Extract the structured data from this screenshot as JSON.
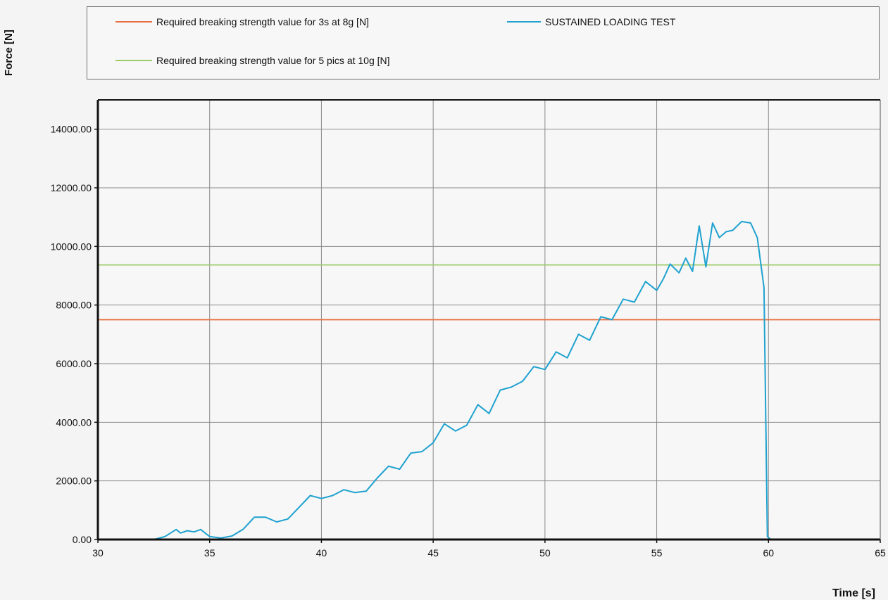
{
  "chart_data": {
    "type": "line",
    "title": "",
    "xlabel": "Time [s]",
    "ylabel": "Force [N]",
    "xlim": [
      30,
      65
    ],
    "ylim": [
      0,
      15000
    ],
    "x_ticks": [
      30,
      35,
      40,
      45,
      50,
      55,
      60,
      65
    ],
    "y_ticks": [
      0,
      2000,
      4000,
      6000,
      8000,
      10000,
      12000,
      14000
    ],
    "y_tick_labels": [
      "0.00",
      "2000.00",
      "4000.00",
      "6000.00",
      "8000.00",
      "10000.00",
      "12000.00",
      "14000.00"
    ],
    "grid": true,
    "legend_position": "top",
    "series": [
      {
        "name": "Required breaking strength value for 3s at 8g [N]",
        "color": "#e8703f",
        "x": [
          30,
          65
        ],
        "y": [
          7500,
          7500
        ]
      },
      {
        "name": "Required breaking strength value for 5 pics at 10g [N]",
        "color": "#9ccc6a",
        "x": [
          30,
          65
        ],
        "y": [
          9370,
          9370
        ]
      },
      {
        "name": "SUSTAINED LOADING TEST",
        "color": "#1fa2cf",
        "x": [
          30,
          32.5,
          33.0,
          33.5,
          33.7,
          34.0,
          34.3,
          34.6,
          35.0,
          35.5,
          36.0,
          36.5,
          37.0,
          37.5,
          38.0,
          38.5,
          39.0,
          39.5,
          40.0,
          40.5,
          41.0,
          41.5,
          42.0,
          42.5,
          43.0,
          43.5,
          44.0,
          44.5,
          45.0,
          45.5,
          46.0,
          46.5,
          47.0,
          47.5,
          48.0,
          48.5,
          49.0,
          49.5,
          50.0,
          50.5,
          51.0,
          51.5,
          52.0,
          52.5,
          53.0,
          53.5,
          54.0,
          54.5,
          55.0,
          55.3,
          55.6,
          56.0,
          56.3,
          56.6,
          56.9,
          57.2,
          57.5,
          57.8,
          58.1,
          58.4,
          58.8,
          59.2,
          59.5,
          59.8,
          59.95,
          60.1,
          62,
          65
        ],
        "y": [
          0,
          0,
          100,
          340,
          220,
          300,
          260,
          340,
          100,
          50,
          120,
          350,
          760,
          760,
          600,
          700,
          1100,
          1500,
          1400,
          1500,
          1700,
          1600,
          1650,
          2100,
          2500,
          2400,
          2950,
          3000,
          3300,
          3950,
          3700,
          3900,
          4600,
          4300,
          5100,
          5200,
          5400,
          5900,
          5800,
          6400,
          6200,
          7000,
          6800,
          7600,
          7500,
          8200,
          8100,
          8800,
          8500,
          8900,
          9400,
          9100,
          9600,
          9150,
          10700,
          9300,
          10800,
          10300,
          10500,
          10550,
          10850,
          10800,
          10300,
          8600,
          100,
          0,
          0,
          0
        ]
      }
    ]
  }
}
